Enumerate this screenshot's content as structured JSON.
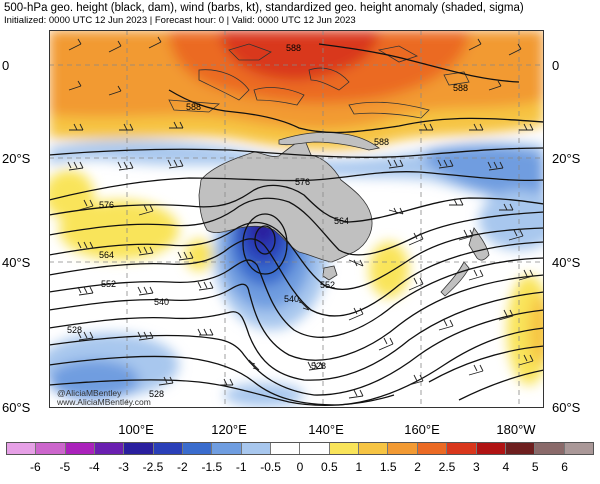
{
  "header": {
    "title": "500-hPa geo. height (black, dam), wind (barbs, kt), standardized geo. height anomaly (shaded, sigma)",
    "subtitle": "Initialized: 0000 UTC 12 Jun 2023 | Forecast hour: 0 | Valid: 0000 UTC 12 Jun 2023"
  },
  "axes": {
    "lat_left": [
      "0",
      "20°S",
      "40°S",
      "60°S"
    ],
    "lat_right": [
      "0",
      "20°S",
      "40°S",
      "60°S"
    ],
    "lon": [
      "100°E",
      "120°E",
      "140°E",
      "160°E",
      "180°W"
    ]
  },
  "contour_labels": [
    "588",
    "588",
    "588",
    "588",
    "576",
    "576",
    "564",
    "564",
    "552",
    "552",
    "540",
    "540",
    "528",
    "528",
    "528"
  ],
  "colorbar": {
    "labels": [
      "-6",
      "-5",
      "-4",
      "-3",
      "-2.5",
      "-2",
      "-1.5",
      "-1",
      "-0.5",
      "0",
      "0.5",
      "1",
      "1.5",
      "2",
      "2.5",
      "3",
      "4",
      "5",
      "6"
    ],
    "colors": [
      "#e6a0e6",
      "#cc66cc",
      "#aa22bb",
      "#6a1fb0",
      "#2a1f9e",
      "#2a3fb8",
      "#3a6ccd",
      "#6f9de0",
      "#a8c7ee",
      "#ffffff",
      "#ffffff",
      "#f9e45a",
      "#f6c443",
      "#f29a33",
      "#eb6a24",
      "#d9371c",
      "#b01313",
      "#6e1f1f",
      "#8a6a6a",
      "#aa9898"
    ]
  },
  "credit": {
    "line1": "@AliciaMBentley",
    "line2": "www.AliciaMBentley.com"
  },
  "colors": {
    "land": "#c0c0c0",
    "coast": "#333333",
    "contour": "#111111",
    "grid": "#888888"
  }
}
